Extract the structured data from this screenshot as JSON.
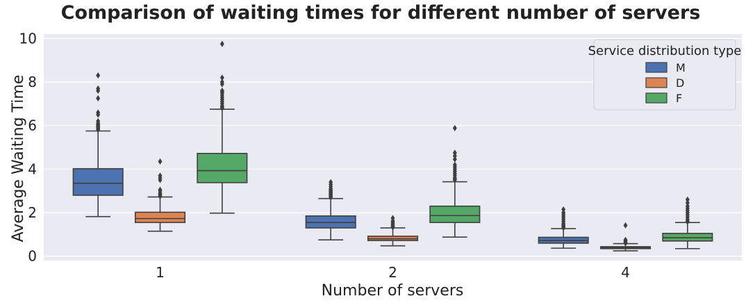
{
  "chart_data": {
    "type": "box",
    "title": "Comparison of waiting times for different number of servers",
    "xlabel": "Number of servers",
    "ylabel": "Average Waiting Time",
    "categories": [
      "1",
      "2",
      "4"
    ],
    "ylim": [
      -0.2,
      10.2
    ],
    "yticks": [
      0,
      2,
      4,
      6,
      8,
      10
    ],
    "grid": true,
    "legend": {
      "title": "Service distribution type",
      "placement": "top-right"
    },
    "series": [
      {
        "name": "M",
        "color": "#4c72b0",
        "boxes": [
          {
            "q1": 2.8,
            "median": 3.35,
            "q3": 4.02,
            "whisker_low": 1.82,
            "whisker_high": 5.75,
            "outliers": [
              5.8,
              5.85,
              5.9,
              5.95,
              6.0,
              6.05,
              6.1,
              6.2,
              6.5,
              6.6,
              7.25,
              7.6,
              7.7,
              8.3
            ]
          },
          {
            "q1": 1.3,
            "median": 1.55,
            "q3": 1.85,
            "whisker_low": 0.75,
            "whisker_high": 2.65,
            "outliers": [
              2.7,
              2.75,
              2.8,
              2.85,
              2.9,
              2.95,
              3.0,
              3.05,
              3.1,
              3.2,
              3.3,
              3.4
            ]
          },
          {
            "q1": 0.6,
            "median": 0.72,
            "q3": 0.87,
            "whisker_low": 0.37,
            "whisker_high": 1.27,
            "outliers": [
              1.3,
              1.35,
              1.4,
              1.45,
              1.5,
              1.6,
              1.7,
              1.8,
              1.9,
              2.0,
              2.15
            ]
          }
        ]
      },
      {
        "name": "D",
        "color": "#dd8452",
        "boxes": [
          {
            "q1": 1.55,
            "median": 1.73,
            "q3": 2.02,
            "whisker_low": 1.15,
            "whisker_high": 2.72,
            "outliers": [
              2.75,
              2.8,
              2.85,
              2.9,
              3.0,
              3.05,
              3.5,
              3.6,
              3.7,
              4.35
            ]
          },
          {
            "q1": 0.72,
            "median": 0.8,
            "q3": 0.92,
            "whisker_low": 0.48,
            "whisker_high": 1.3,
            "outliers": [
              1.33,
              1.38,
              1.42,
              1.48,
              1.55,
              1.62,
              1.75
            ]
          },
          {
            "q1": 0.35,
            "median": 0.4,
            "q3": 0.44,
            "whisker_low": 0.25,
            "whisker_high": 0.58,
            "outliers": [
              0.6,
              0.65,
              0.7,
              0.75,
              1.42
            ]
          }
        ]
      },
      {
        "name": "F",
        "color": "#55a868",
        "boxes": [
          {
            "q1": 3.38,
            "median": 3.93,
            "q3": 4.72,
            "whisker_low": 1.98,
            "whisker_high": 6.75,
            "outliers": [
              6.8,
              6.85,
              6.9,
              7.0,
              7.1,
              7.2,
              7.3,
              7.4,
              7.5,
              7.55,
              7.6,
              7.9,
              8.0,
              8.2,
              9.75
            ]
          },
          {
            "q1": 1.55,
            "median": 1.87,
            "q3": 2.3,
            "whisker_low": 0.88,
            "whisker_high": 3.42,
            "outliers": [
              3.5,
              3.55,
              3.6,
              3.7,
              3.8,
              3.9,
              4.0,
              4.1,
              4.2,
              4.45,
              4.6,
              4.75,
              5.88
            ]
          },
          {
            "q1": 0.7,
            "median": 0.85,
            "q3": 1.05,
            "whisker_low": 0.35,
            "whisker_high": 1.55,
            "outliers": [
              1.58,
              1.62,
              1.7,
              1.8,
              1.9,
              2.0,
              2.1,
              2.2,
              2.3,
              2.45,
              2.6
            ]
          }
        ]
      }
    ]
  }
}
